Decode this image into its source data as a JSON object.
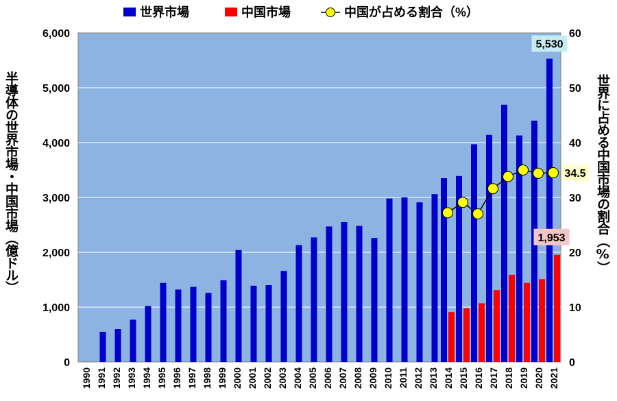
{
  "chart_data": {
    "type": "bar+line",
    "categories": [
      "1990",
      "1991",
      "1992",
      "1993",
      "1994",
      "1995",
      "1996",
      "1997",
      "1998",
      "1999",
      "2000",
      "2001",
      "2002",
      "2003",
      "2004",
      "2005",
      "2006",
      "2007",
      "2008",
      "2009",
      "2010",
      "2011",
      "2012",
      "2013",
      "2014",
      "2015",
      "2016",
      "2017",
      "2018",
      "2019",
      "2020",
      "2021"
    ],
    "series": [
      {
        "name": "世界市場",
        "axis": "left",
        "kind": "bar",
        "color": "#0000cc",
        "values": [
          null,
          550,
          600,
          770,
          1020,
          1440,
          1320,
          1370,
          1260,
          1490,
          2040,
          1390,
          1400,
          1660,
          2130,
          2270,
          2470,
          2550,
          2480,
          2260,
          2980,
          3000,
          2910,
          3060,
          3350,
          3390,
          3970,
          4140,
          4690,
          4130,
          4400,
          5530
        ]
      },
      {
        "name": "中国市場",
        "axis": "left",
        "kind": "bar",
        "color": "#ff0000",
        "values": [
          null,
          null,
          null,
          null,
          null,
          null,
          null,
          null,
          null,
          null,
          null,
          null,
          null,
          null,
          null,
          null,
          null,
          null,
          null,
          null,
          null,
          null,
          null,
          null,
          910,
          980,
          1070,
          1310,
          1590,
          1440,
          1510,
          1953
        ]
      },
      {
        "name": "中国が占める割合（%）",
        "axis": "right",
        "kind": "line",
        "color": "#ffff00",
        "values": [
          null,
          null,
          null,
          null,
          null,
          null,
          null,
          null,
          null,
          null,
          null,
          null,
          null,
          null,
          null,
          null,
          null,
          null,
          null,
          null,
          null,
          null,
          null,
          null,
          27.2,
          29.1,
          27.0,
          31.6,
          33.8,
          35.0,
          34.4,
          34.5
        ]
      }
    ],
    "y_left": {
      "label": "半導体の世界市場・中国市場（億ドル）",
      "range": [
        0,
        6000
      ],
      "ticks": [
        "0",
        "1,000",
        "2,000",
        "3,000",
        "4,000",
        "5,000",
        "6,000"
      ]
    },
    "y_right": {
      "label": "世界に占める中国市場の割合（%）",
      "range": [
        0,
        60
      ],
      "ticks": [
        "0",
        "10",
        "20",
        "30",
        "40",
        "50",
        "60"
      ]
    },
    "annotations": [
      {
        "text": "5,530",
        "series": "世界市場",
        "category": "2021",
        "bg": "#c6ecf2"
      },
      {
        "text": "1,953",
        "series": "中国市場",
        "category": "2021",
        "bg": "#f2c6c6"
      },
      {
        "text": "34.5",
        "series": "中国が占める割合（%）",
        "category": "2021",
        "bg": "#ffffcc"
      }
    ],
    "grid": true,
    "legend": "top",
    "plot_bg": "#8db3e2"
  }
}
